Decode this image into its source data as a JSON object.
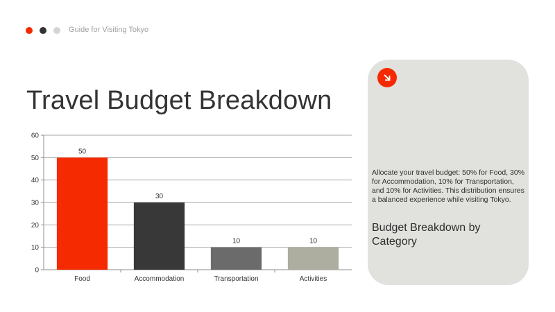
{
  "header": {
    "text": "Guide for Visiting Tokyo",
    "dots": [
      "#f52a00",
      "#333333",
      "#d5d5d5"
    ]
  },
  "slide": {
    "title": "Travel Budget Breakdown"
  },
  "card": {
    "icon": "arrow-down-right-icon",
    "accent_color": "#f52a00",
    "body": "Allocate your travel budget: 50% for Food, 30% for Accommodation, 10% for Transportation, and 10% for Activities. This distribution ensures a balanced experience while visiting Tokyo.",
    "heading": "Budget Breakdown by Category"
  },
  "chart_data": {
    "type": "bar",
    "categories": [
      "Food",
      "Accommodation",
      "Transportation",
      "Activities"
    ],
    "values": [
      50,
      30,
      10,
      10
    ],
    "colors": [
      "#f52a00",
      "#383838",
      "#6b6b6b",
      "#adada0"
    ],
    "data_labels": [
      "50",
      "30",
      "10",
      "10"
    ],
    "ylim": [
      0,
      60
    ],
    "yticks": [
      "0",
      "10",
      "20",
      "30",
      "40",
      "50",
      "60"
    ],
    "grid": true,
    "legend": "none",
    "xlabel": "",
    "ylabel": ""
  }
}
